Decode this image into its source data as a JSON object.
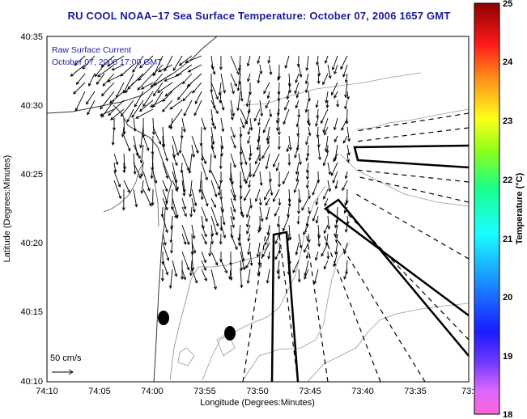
{
  "title": "RU COOL  NOAA–17  Sea Surface Temperature:  October 07, 2006 1657 GMT",
  "overlay_line1": "Raw Surface Current",
  "overlay_line2": "October 07, 2006 17:00 GMT",
  "scale_label": "50 cm/s",
  "xlabel": "Longitude (Degrees:Minutes)",
  "ylabel": "Latitude (Degrees:Minutes)",
  "colorbar_label": "Temperature (°C)",
  "x_ticks": [
    "74:10",
    "74:05",
    "74:00",
    "73:55",
    "73:50",
    "73:45",
    "73:40",
    "73:35",
    "73:3"
  ],
  "y_ticks": [
    "40:35",
    "40:30",
    "40:25",
    "40:20",
    "40:15",
    "40:10"
  ],
  "colorbar_ticks": [
    "25",
    "24",
    "23",
    "22",
    "21",
    "20",
    "19",
    "18"
  ],
  "colors": {
    "title": "#1a1a9c",
    "overlay": "#1a1a9c"
  }
}
